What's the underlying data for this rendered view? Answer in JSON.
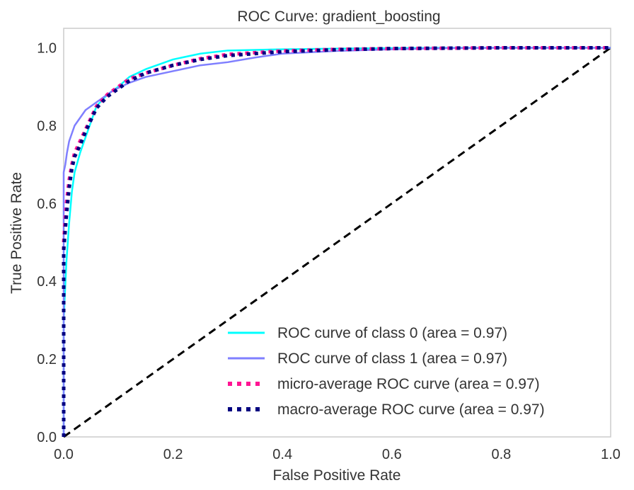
{
  "chart_data": {
    "type": "line",
    "title": "ROC Curve: gradient_boosting",
    "xlabel": "False Positive Rate",
    "ylabel": "True Positive Rate",
    "xlim": [
      0.0,
      1.0
    ],
    "ylim": [
      0.0,
      1.05
    ],
    "x_ticks": [
      "0.0",
      "0.2",
      "0.4",
      "0.6",
      "0.8",
      "1.0"
    ],
    "y_ticks": [
      "0.0",
      "0.2",
      "0.4",
      "0.6",
      "0.8",
      "1.0"
    ],
    "grid": false,
    "legend_position": "lower-right",
    "series": [
      {
        "name": "ROC curve of class 0 (area = 0.97)",
        "color": "#00ffff",
        "style": "solid",
        "x": [
          0.0,
          0.0,
          0.005,
          0.01,
          0.015,
          0.02,
          0.03,
          0.04,
          0.05,
          0.06,
          0.08,
          0.1,
          0.12,
          0.15,
          0.2,
          0.25,
          0.3,
          0.4,
          0.5,
          0.6,
          0.7,
          0.8,
          0.9,
          1.0
        ],
        "y": [
          0.0,
          0.3,
          0.45,
          0.55,
          0.63,
          0.68,
          0.73,
          0.77,
          0.81,
          0.85,
          0.88,
          0.9,
          0.925,
          0.945,
          0.97,
          0.985,
          0.993,
          0.996,
          0.998,
          0.999,
          1.0,
          1.0,
          1.0,
          1.0
        ]
      },
      {
        "name": "ROC curve of class 1 (area = 0.97)",
        "color": "#7f7fff",
        "style": "solid",
        "x": [
          0.0,
          0.0,
          0.003,
          0.006,
          0.01,
          0.015,
          0.02,
          0.03,
          0.04,
          0.05,
          0.07,
          0.09,
          0.12,
          0.15,
          0.2,
          0.25,
          0.3,
          0.35,
          0.4,
          0.5,
          0.6,
          0.7,
          0.8,
          0.9,
          1.0
        ],
        "y": [
          0.0,
          0.68,
          0.7,
          0.73,
          0.76,
          0.78,
          0.8,
          0.82,
          0.84,
          0.85,
          0.87,
          0.89,
          0.91,
          0.925,
          0.94,
          0.955,
          0.963,
          0.975,
          0.985,
          0.992,
          0.996,
          0.999,
          1.0,
          1.0,
          1.0
        ]
      },
      {
        "name": "micro-average ROC curve (area = 0.97)",
        "color": "#ff1493",
        "style": "dotted",
        "x": [
          0.0,
          0.0,
          0.005,
          0.01,
          0.015,
          0.02,
          0.03,
          0.04,
          0.05,
          0.06,
          0.08,
          0.1,
          0.12,
          0.15,
          0.2,
          0.25,
          0.3,
          0.4,
          0.5,
          0.6,
          0.7,
          0.8,
          0.9,
          1.0
        ],
        "y": [
          0.0,
          0.5,
          0.6,
          0.66,
          0.7,
          0.73,
          0.76,
          0.79,
          0.82,
          0.85,
          0.88,
          0.9,
          0.92,
          0.935,
          0.955,
          0.972,
          0.983,
          0.992,
          0.996,
          0.998,
          0.999,
          1.0,
          1.0,
          1.0
        ]
      },
      {
        "name": "macro-average ROC curve (area = 0.97)",
        "color": "#000080",
        "style": "dotted",
        "x": [
          0.0,
          0.0,
          0.005,
          0.01,
          0.015,
          0.02,
          0.03,
          0.04,
          0.05,
          0.06,
          0.08,
          0.1,
          0.12,
          0.15,
          0.2,
          0.25,
          0.3,
          0.4,
          0.5,
          0.6,
          0.7,
          0.8,
          0.9,
          1.0
        ],
        "y": [
          0.0,
          0.48,
          0.57,
          0.64,
          0.69,
          0.72,
          0.75,
          0.785,
          0.815,
          0.845,
          0.875,
          0.895,
          0.915,
          0.935,
          0.955,
          0.97,
          0.98,
          0.99,
          0.995,
          0.998,
          0.999,
          1.0,
          1.0,
          1.0
        ]
      },
      {
        "color": "#000000",
        "style": "dashed",
        "x": [
          0.0,
          1.0
        ],
        "y": [
          0.0,
          1.0
        ]
      }
    ]
  }
}
